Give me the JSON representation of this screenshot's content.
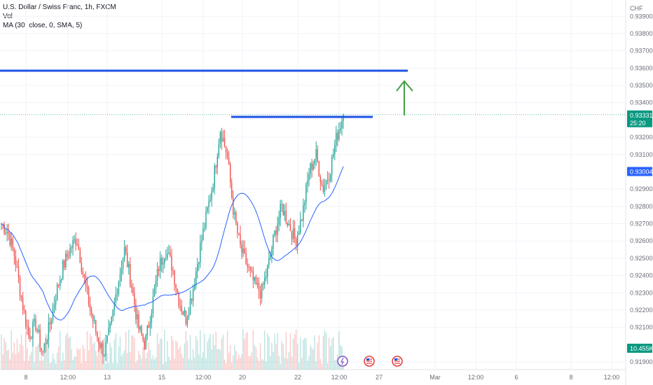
{
  "legend": {
    "symbol_line": "U.S. Dollar / Swiss Franc, 1h, FXCM",
    "vol_label": "Vol",
    "ma_label": "MA (30, close, 0, SMA, 5)"
  },
  "colors": {
    "up": "#26a69a",
    "down": "#ef5350",
    "ma": "#2962ff",
    "drawing_line": "#1e53e5",
    "arrow": "#43a047",
    "price_badge": "#089981",
    "level_badge": "#2962ff",
    "grid": "#f0f3fa"
  },
  "axis": {
    "currency": "CHF",
    "price_ticks": [
      "0.93900",
      "0.93800",
      "0.93700",
      "0.93600",
      "0.93500",
      "0.93400",
      "0.93200",
      "0.93100",
      "0.92900",
      "0.92800",
      "0.92700",
      "0.92600",
      "0.92500",
      "0.92400",
      "0.92300",
      "0.92200",
      "0.92100",
      "0.91900"
    ],
    "time_ticks": [
      "8",
      "12:00",
      "13",
      "15",
      "12:00",
      "20",
      "22",
      "12:00",
      "27",
      "Mar",
      "12:00",
      "6",
      "8",
      "12:00"
    ]
  },
  "badges": {
    "last_price": "0.93331",
    "countdown": "25:20",
    "level_price": "0.93004",
    "volume": "10.455K"
  },
  "chart_data": {
    "type": "candlestick",
    "symbol": "USDCHF",
    "timeframe": "1h",
    "y_range": [
      0.9188,
      0.9397
    ],
    "x_range_dates": [
      "Feb 7",
      "Mar 10"
    ],
    "grid": true,
    "resistance_line_top": 0.93585,
    "resistance_line_mid": 0.93318,
    "projection_arrow": "up",
    "close_path": [
      0.927,
      0.9265,
      0.925,
      0.9225,
      0.9205,
      0.9212,
      0.9195,
      0.921,
      0.923,
      0.9245,
      0.9255,
      0.9262,
      0.924,
      0.922,
      0.9205,
      0.9195,
      0.921,
      0.9235,
      0.9255,
      0.9235,
      0.921,
      0.92,
      0.9222,
      0.9245,
      0.9255,
      0.9245,
      0.9225,
      0.9215,
      0.9232,
      0.9255,
      0.9275,
      0.9295,
      0.9325,
      0.931,
      0.9275,
      0.9255,
      0.9245,
      0.9235,
      0.923,
      0.9245,
      0.9265,
      0.928,
      0.927,
      0.926,
      0.9275,
      0.93,
      0.931,
      0.929,
      0.93,
      0.932,
      0.93331
    ],
    "volume_note": "volume histogram at bottom, last 10.455K",
    "events": [
      "lightning",
      "US-flag",
      "US-flag"
    ]
  }
}
